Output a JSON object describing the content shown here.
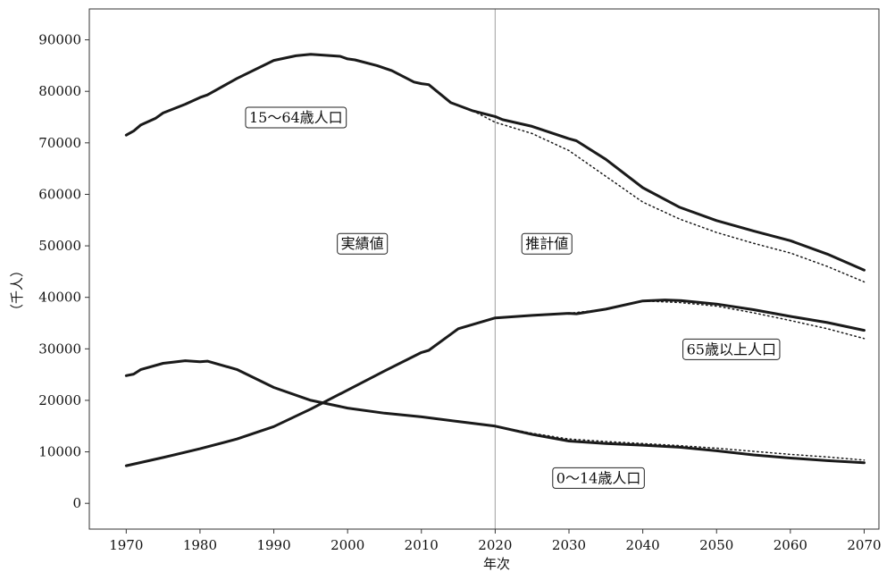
{
  "chart_data": {
    "type": "line",
    "xlabel": "年次",
    "ylabel": "（千人）",
    "xlim": [
      1965,
      2072
    ],
    "ylim": [
      -5000,
      96000
    ],
    "xticks": [
      1970,
      1980,
      1990,
      2000,
      2010,
      2020,
      2030,
      2040,
      2050,
      2060,
      2070
    ],
    "yticks": [
      0,
      10000,
      20000,
      30000,
      40000,
      50000,
      60000,
      70000,
      80000,
      90000
    ],
    "grid": false,
    "legend": "none",
    "divider_x": 2020,
    "colors": {
      "line": "#1a1a1a",
      "divider": "#b0b0b0",
      "axis": "#333333"
    },
    "annotations": [
      {
        "text": "15〜64歳人口",
        "x": 1993,
        "y": 75000
      },
      {
        "text": "実績値",
        "x": 2002,
        "y": 50500
      },
      {
        "text": "推計値",
        "x": 2027,
        "y": 50500
      },
      {
        "text": "65歳以上人口",
        "x": 2052,
        "y": 30000
      },
      {
        "text": "0〜14歳人口",
        "x": 2034,
        "y": 5000
      }
    ],
    "series": [
      {
        "style": "solid",
        "x": [
          1970,
          1971,
          1972,
          1974,
          1975,
          1978,
          1980,
          1981,
          1985,
          1990,
          1993,
          1995,
          1999,
          2000,
          2001,
          2004,
          2006,
          2009,
          2010,
          2011,
          2014,
          2017,
          2020,
          2021,
          2025,
          2030,
          2031,
          2035,
          2040,
          2045,
          2050,
          2055,
          2060,
          2065,
          2070
        ],
        "y": [
          71500,
          72300,
          73500,
          74800,
          75800,
          77500,
          78800,
          79300,
          82500,
          86000,
          86900,
          87200,
          86800,
          86300,
          86100,
          85000,
          84000,
          81800,
          81500,
          81300,
          77800,
          76200,
          75100,
          74500,
          73200,
          70800,
          70400,
          66800,
          61300,
          57500,
          54900,
          52900,
          51000,
          48400,
          45300
        ]
      },
      {
        "style": "dotted",
        "x": [
          2017,
          2020,
          2025,
          2030,
          2035,
          2040,
          2045,
          2050,
          2055,
          2060,
          2065,
          2070
        ],
        "y": [
          76200,
          74000,
          71800,
          68500,
          63500,
          58500,
          55200,
          52600,
          50500,
          48600,
          46000,
          43000
        ]
      },
      {
        "style": "solid",
        "x": [
          1970,
          1975,
          1980,
          1985,
          1990,
          1995,
          2000,
          2005,
          2010,
          2011,
          2015,
          2020,
          2025,
          2030,
          2031,
          2035,
          2040,
          2043,
          2045,
          2050,
          2055,
          2060,
          2065,
          2070
        ],
        "y": [
          7300,
          8900,
          10600,
          12500,
          14900,
          18300,
          22000,
          25700,
          29300,
          29700,
          33900,
          36000,
          36500,
          36900,
          36800,
          37700,
          39300,
          39500,
          39400,
          38700,
          37600,
          36300,
          35100,
          33600
        ]
      },
      {
        "style": "dotted",
        "x": [
          2030,
          2035,
          2040,
          2045,
          2050,
          2055,
          2060,
          2065,
          2070
        ],
        "y": [
          36900,
          37700,
          39300,
          39000,
          38300,
          37000,
          35500,
          33900,
          32000
        ]
      },
      {
        "style": "solid",
        "x": [
          1970,
          1971,
          1972,
          1975,
          1978,
          1980,
          1981,
          1985,
          1990,
          1995,
          2000,
          2005,
          2010,
          2015,
          2020,
          2025,
          2030,
          2035,
          2040,
          2045,
          2050,
          2055,
          2060,
          2065,
          2070
        ],
        "y": [
          24800,
          25100,
          26000,
          27200,
          27700,
          27500,
          27600,
          26000,
          22500,
          20000,
          18500,
          17500,
          16800,
          15900,
          15000,
          13400,
          12100,
          11600,
          11300,
          10900,
          10200,
          9400,
          8800,
          8300,
          7900
        ]
      },
      {
        "style": "dotted",
        "x": [
          2020,
          2025,
          2030,
          2035,
          2040,
          2045,
          2050,
          2055,
          2060,
          2065,
          2070
        ],
        "y": [
          15000,
          13600,
          12500,
          12000,
          11600,
          11200,
          10700,
          10100,
          9500,
          9000,
          8400
        ]
      }
    ]
  }
}
